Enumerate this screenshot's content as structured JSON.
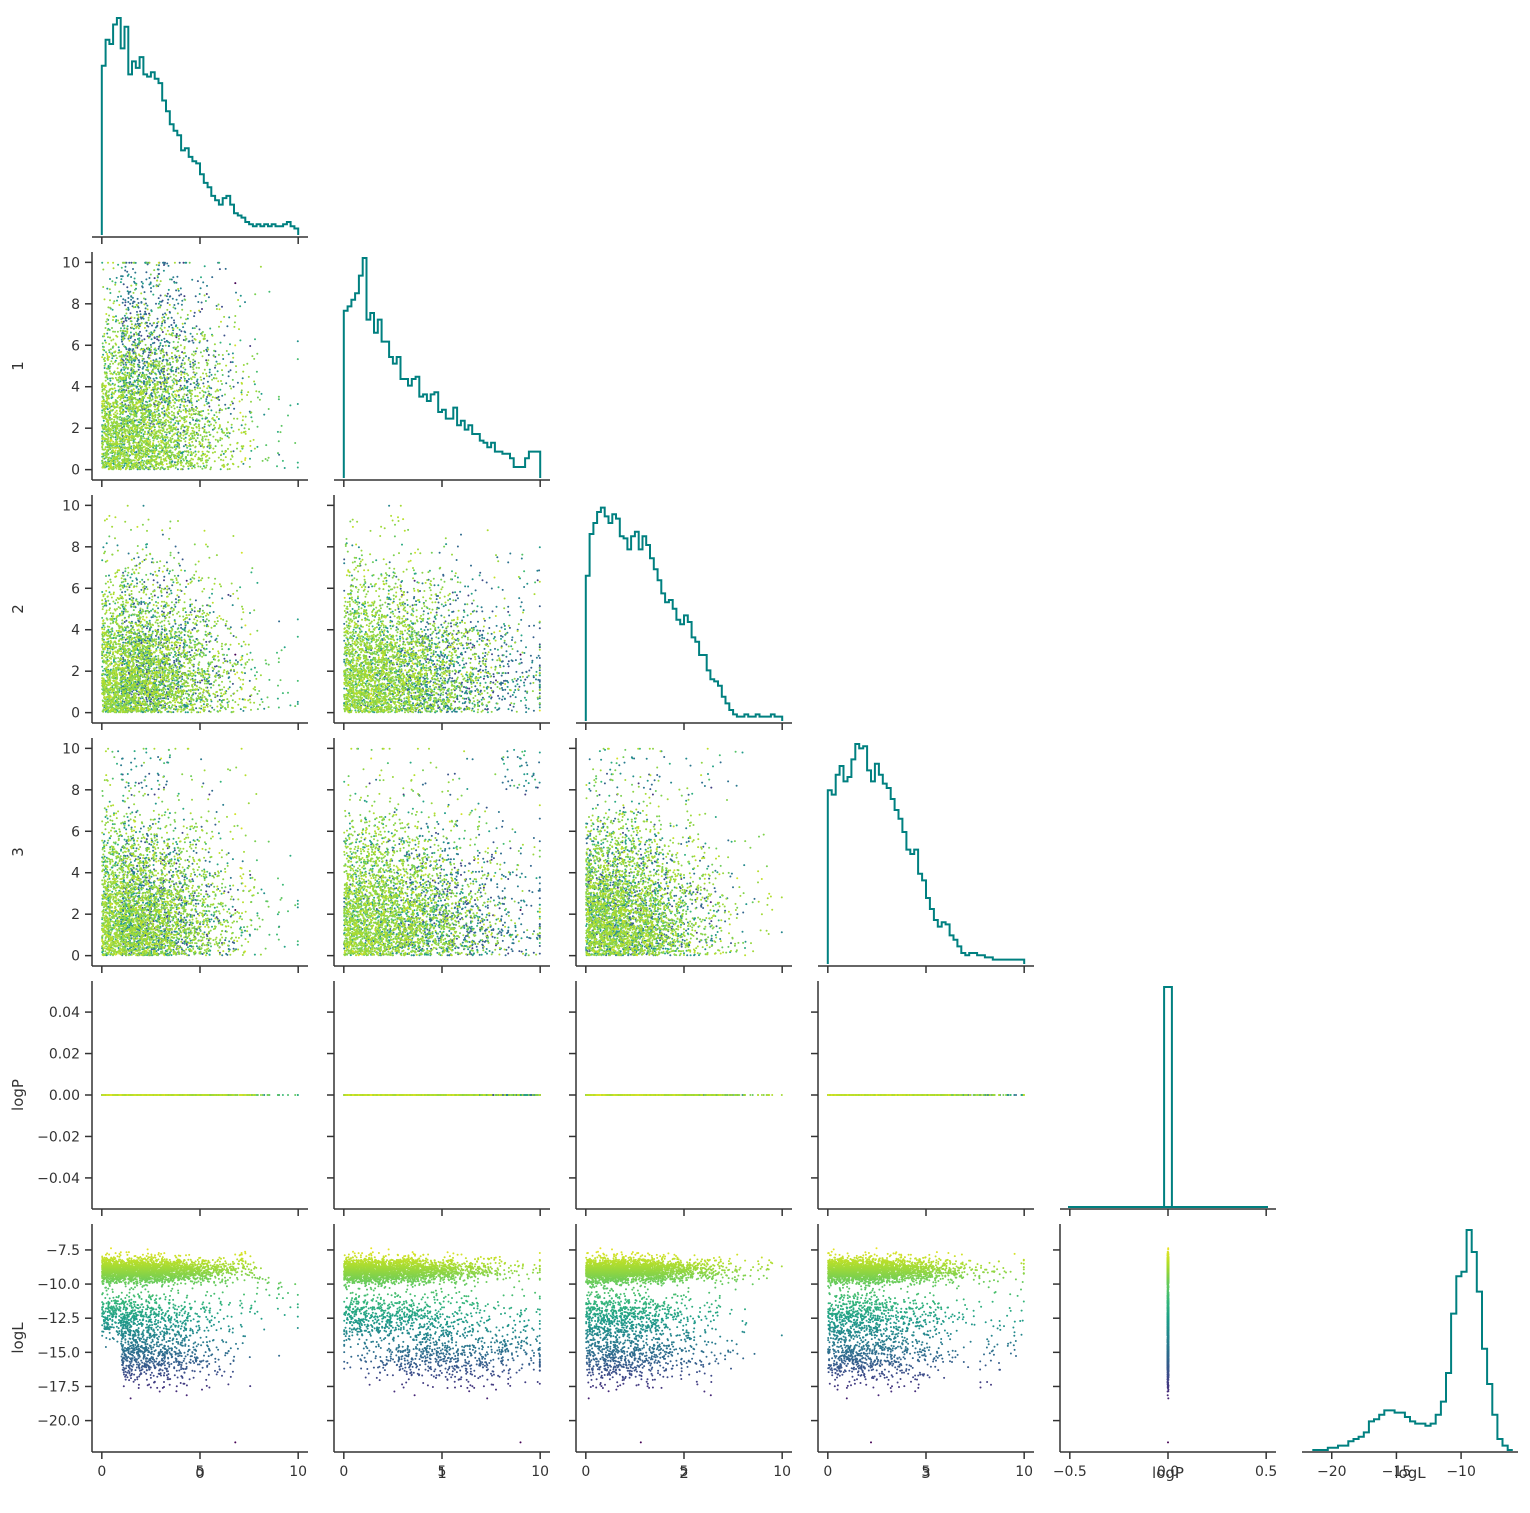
{
  "chart_data": {
    "type": "pairplot",
    "variables": [
      "0",
      "1",
      "2",
      "3",
      "logP",
      "logL"
    ],
    "layout": "lower-triangle corner plot: histograms on diagonal, scatter plots below",
    "diagonal": "step histogram",
    "hist_color": "#008080",
    "colormap": "viridis",
    "color_by": "logL",
    "grid": false,
    "axes": {
      "0": {
        "range": [
          -0.5,
          10.5
        ],
        "ticks": [
          0,
          5,
          10
        ],
        "tick_labels": [
          "0",
          "5",
          "10"
        ]
      },
      "1": {
        "range": [
          -0.5,
          10.5
        ],
        "ticks": [
          0,
          2,
          4,
          6,
          8,
          10
        ],
        "tick_labels": [
          "0",
          "2",
          "4",
          "6",
          "8",
          "10"
        ],
        "x_ticks": [
          0,
          5,
          10
        ],
        "x_tick_labels": [
          "0",
          "5",
          "10"
        ]
      },
      "2": {
        "range": [
          -0.5,
          10.5
        ],
        "ticks": [
          0,
          2,
          4,
          6,
          8,
          10
        ],
        "tick_labels": [
          "0",
          "2",
          "4",
          "6",
          "8",
          "10"
        ],
        "x_ticks": [
          0,
          5,
          10
        ],
        "x_tick_labels": [
          "0",
          "5",
          "10"
        ]
      },
      "3": {
        "range": [
          -0.5,
          10.5
        ],
        "ticks": [
          0,
          2,
          4,
          6,
          8,
          10
        ],
        "tick_labels": [
          "0",
          "2",
          "4",
          "6",
          "8",
          "10"
        ],
        "x_ticks": [
          0,
          5,
          10
        ],
        "x_tick_labels": [
          "0",
          "5",
          "10"
        ]
      },
      "logP": {
        "range": [
          -0.055,
          0.055
        ],
        "ticks": [
          -0.04,
          -0.02,
          0.0,
          0.02,
          0.04
        ],
        "tick_labels": [
          "−0.04",
          "−0.02",
          "0.00",
          "0.02",
          "0.04"
        ],
        "x_range": [
          -0.55,
          0.55
        ],
        "x_ticks": [
          -0.5,
          0.0,
          0.5
        ],
        "x_tick_labels": [
          "−0.5",
          "0.0",
          "0.5"
        ]
      },
      "logL": {
        "range": [
          -22.3,
          -5.6
        ],
        "ticks": [
          -7.5,
          -10.0,
          -12.5,
          -15.0,
          -17.5,
          -20.0
        ],
        "tick_labels": [
          "−7.5",
          "−10.0",
          "−12.5",
          "−15.0",
          "−17.5",
          "−20.0"
        ],
        "x_range": [
          -22.3,
          -5.6
        ],
        "x_ticks": [
          -20,
          -15,
          -10
        ],
        "x_tick_labels": [
          "−20",
          "−15",
          "−10"
        ]
      }
    },
    "histograms": {
      "0": {
        "bin_range": [
          0,
          10
        ],
        "counts": [
          0.78,
          0.9,
          0.88,
          0.97,
          1.0,
          0.86,
          0.96,
          0.74,
          0.8,
          0.77,
          0.82,
          0.74,
          0.73,
          0.75,
          0.72,
          0.7,
          0.62,
          0.57,
          0.51,
          0.48,
          0.46,
          0.39,
          0.4,
          0.36,
          0.34,
          0.33,
          0.28,
          0.24,
          0.22,
          0.18,
          0.16,
          0.14,
          0.17,
          0.18,
          0.14,
          0.1,
          0.09,
          0.08,
          0.06,
          0.05,
          0.04,
          0.05,
          0.04,
          0.05,
          0.04,
          0.05,
          0.04,
          0.04,
          0.05,
          0.06,
          0.04,
          0.03
        ]
      },
      "1": {
        "bin_range": [
          0,
          10
        ],
        "counts": [
          0.76,
          0.78,
          0.81,
          0.84,
          0.92,
          1.0,
          0.72,
          0.75,
          0.66,
          0.72,
          0.62,
          0.62,
          0.55,
          0.52,
          0.55,
          0.45,
          0.45,
          0.42,
          0.45,
          0.46,
          0.37,
          0.38,
          0.35,
          0.38,
          0.39,
          0.3,
          0.31,
          0.27,
          0.27,
          0.32,
          0.24,
          0.26,
          0.22,
          0.24,
          0.2,
          0.2,
          0.17,
          0.16,
          0.14,
          0.16,
          0.12,
          0.12,
          0.11,
          0.11,
          0.09,
          0.05,
          0.05,
          0.05,
          0.09,
          0.12,
          0.12,
          0.12
        ]
      },
      "2": {
        "bin_range": [
          0,
          10
        ],
        "counts": [
          0.66,
          0.85,
          0.9,
          0.95,
          0.97,
          0.93,
          0.9,
          0.94,
          0.92,
          0.84,
          0.83,
          0.78,
          0.84,
          0.86,
          0.78,
          0.84,
          0.8,
          0.74,
          0.69,
          0.64,
          0.58,
          0.54,
          0.55,
          0.51,
          0.46,
          0.44,
          0.48,
          0.45,
          0.38,
          0.36,
          0.3,
          0.3,
          0.23,
          0.19,
          0.18,
          0.16,
          0.11,
          0.08,
          0.05,
          0.03,
          0.02,
          0.02,
          0.03,
          0.02,
          0.02,
          0.03,
          0.02,
          0.02,
          0.02,
          0.03,
          0.02,
          0.02
        ]
      },
      "3": {
        "bin_range": [
          0,
          10
        ],
        "counts": [
          0.79,
          0.77,
          0.86,
          0.9,
          0.83,
          0.85,
          0.93,
          1.0,
          0.98,
          0.99,
          0.88,
          0.83,
          0.91,
          0.86,
          0.82,
          0.8,
          0.75,
          0.7,
          0.66,
          0.6,
          0.52,
          0.5,
          0.52,
          0.41,
          0.38,
          0.3,
          0.25,
          0.2,
          0.17,
          0.19,
          0.18,
          0.13,
          0.11,
          0.08,
          0.05,
          0.04,
          0.05,
          0.05,
          0.04,
          0.04,
          0.03,
          0.03,
          0.02,
          0.02,
          0.02,
          0.02,
          0.02,
          0.02,
          0.02,
          0.02
        ]
      },
      "logP": {
        "bin_range": [
          -0.02,
          0.02
        ],
        "counts": [
          1.0
        ]
      },
      "logL": {
        "bin_range": [
          -21.5,
          -6.0
        ],
        "counts": [
          0.0,
          0.0,
          0.0,
          0.01,
          0.01,
          0.02,
          0.02,
          0.04,
          0.05,
          0.06,
          0.08,
          0.13,
          0.14,
          0.16,
          0.18,
          0.18,
          0.17,
          0.17,
          0.15,
          0.13,
          0.12,
          0.12,
          0.11,
          0.12,
          0.16,
          0.22,
          0.35,
          0.62,
          0.79,
          0.81,
          1.0,
          0.9,
          0.72,
          0.46,
          0.3,
          0.16,
          0.05,
          0.02,
          0.0
        ]
      }
    },
    "scatter_description": "lower-triangle scatter panels of ~4000 posterior samples; parameters 0-3 sampled in [0,10], logP fixed at 0, logL mostly between -7 and -19 with one point near -21.6",
    "x_labels": [
      "0",
      "1",
      "2",
      "3",
      "logP",
      "logL"
    ],
    "y_labels": [
      "1",
      "2",
      "3",
      "logP",
      "logL"
    ]
  }
}
